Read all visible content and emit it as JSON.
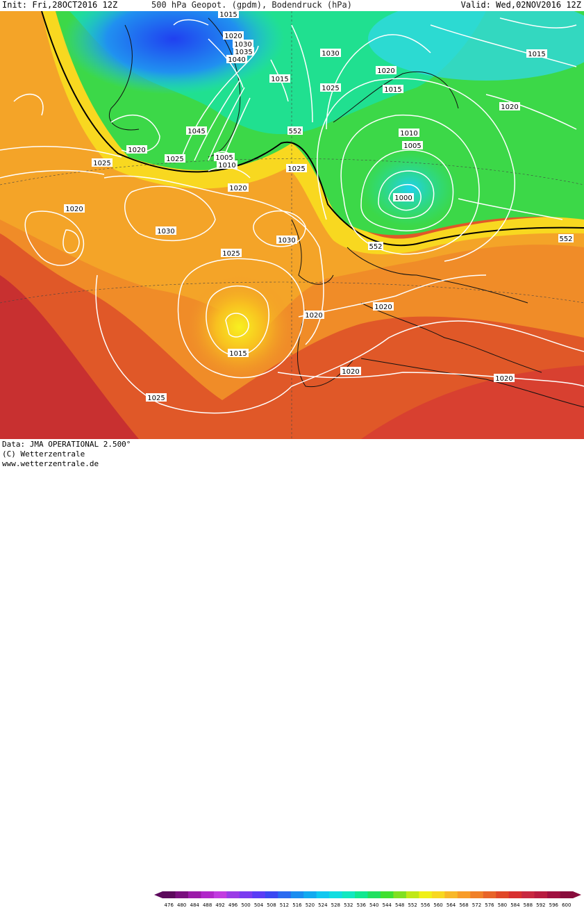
{
  "header": {
    "init": "Init: Fri,28OCT2016 12Z",
    "title": "500 hPa Geopot. (gpdm), Bodendruck (hPa)",
    "valid": "Valid: Wed,02NOV2016 12Z"
  },
  "footer": {
    "data_source": "Data: JMA OPERATIONAL 2.500°",
    "copyright": "(C) Wetterzentrale",
    "url": "www.wetterzentrale.de"
  },
  "legend": {
    "ticks": [
      "476",
      "480",
      "484",
      "488",
      "492",
      "496",
      "500",
      "504",
      "508",
      "512",
      "516",
      "520",
      "524",
      "528",
      "532",
      "536",
      "540",
      "544",
      "548",
      "552",
      "556",
      "560",
      "564",
      "568",
      "572",
      "576",
      "580",
      "584",
      "588",
      "592",
      "596",
      "600"
    ],
    "colors": [
      "#5c0a5c",
      "#7a0f7e",
      "#9b1ba8",
      "#b127c9",
      "#c23be0",
      "#9a3be6",
      "#7a3cf0",
      "#5a3cf5",
      "#3a48f2",
      "#2a6af0",
      "#1a8df0",
      "#12aaf0",
      "#10c8f0",
      "#10dde0",
      "#10e8c0",
      "#10e890",
      "#20e060",
      "#40e030",
      "#80e020",
      "#c0e818",
      "#f0f018",
      "#f8d820",
      "#f8b828",
      "#f89c28",
      "#f08028",
      "#e86428",
      "#e04828",
      "#d83030",
      "#c82840",
      "#b81c40",
      "#a01040",
      "#880c3c"
    ]
  },
  "isobar_labels": [
    {
      "text": "1015"
    },
    {
      "text": "1020"
    },
    {
      "text": "1030"
    },
    {
      "text": "1035"
    },
    {
      "text": "1040"
    },
    {
      "text": "1030"
    },
    {
      "text": "1020"
    },
    {
      "text": "1015"
    },
    {
      "text": "1025"
    },
    {
      "text": "1015"
    },
    {
      "text": "1015"
    },
    {
      "text": "1020"
    },
    {
      "text": "1045"
    },
    {
      "text": "552"
    },
    {
      "text": "1010"
    },
    {
      "text": "1005"
    },
    {
      "text": "1020"
    },
    {
      "text": "1025"
    },
    {
      "text": "1005"
    },
    {
      "text": "1010"
    },
    {
      "text": "1025"
    },
    {
      "text": "1025"
    },
    {
      "text": "1020"
    },
    {
      "text": "1000"
    },
    {
      "text": "1020"
    },
    {
      "text": "1030"
    },
    {
      "text": "1030"
    },
    {
      "text": "552"
    },
    {
      "text": "552"
    },
    {
      "text": "1025"
    },
    {
      "text": "1020"
    },
    {
      "text": "1020"
    },
    {
      "text": "1015"
    },
    {
      "text": "1020"
    },
    {
      "text": "1020"
    },
    {
      "text": "1025"
    }
  ]
}
